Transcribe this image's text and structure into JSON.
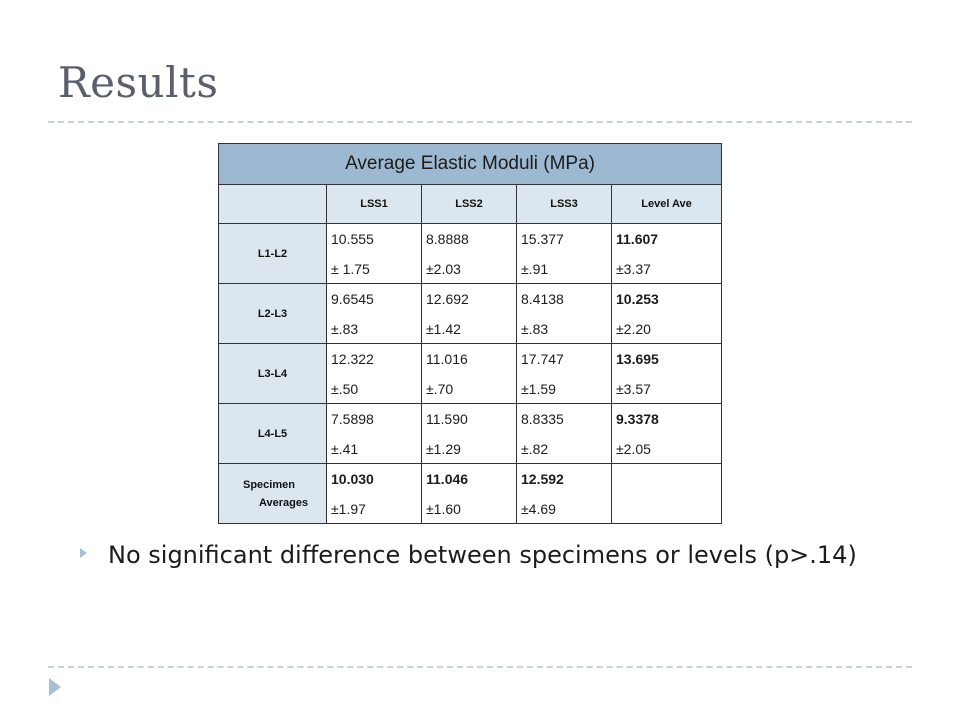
{
  "slide": {
    "title": "Results"
  },
  "table": {
    "title": "Average Elastic Moduli (MPa)",
    "columns": [
      "LSS1",
      "LSS2",
      "LSS3",
      "Level Ave"
    ],
    "rows": [
      {
        "label": "L1-L2",
        "cells": [
          {
            "value": "10.555",
            "sd": "± 1.75"
          },
          {
            "value": "8.8888",
            "sd": "±2.03"
          },
          {
            "value": "15.377",
            "sd": "±.91"
          },
          {
            "value": "11.607",
            "sd": "±3.37"
          }
        ]
      },
      {
        "label": "L2-L3",
        "cells": [
          {
            "value": "9.6545",
            "sd": "±.83"
          },
          {
            "value": "12.692",
            "sd": "±1.42"
          },
          {
            "value": "8.4138",
            "sd": "±.83"
          },
          {
            "value": "10.253",
            "sd": "±2.20"
          }
        ]
      },
      {
        "label": "L3-L4",
        "cells": [
          {
            "value": "12.322",
            "sd": "±.50"
          },
          {
            "value": "11.016",
            "sd": "±.70"
          },
          {
            "value": "17.747",
            "sd": "±1.59"
          },
          {
            "value": "13.695",
            "sd": "±3.57"
          }
        ]
      },
      {
        "label": "L4-L5",
        "cells": [
          {
            "value": "7.5898",
            "sd": "±.41"
          },
          {
            "value": "11.590",
            "sd": "±1.29"
          },
          {
            "value": "8.8335",
            "sd": "±.82"
          },
          {
            "value": "9.3378",
            "sd": "±2.05"
          }
        ]
      }
    ],
    "specimen": {
      "label_line1": "Specimen",
      "label_line2": "Averages",
      "cells": [
        {
          "value": "10.030",
          "sd": "±1.97"
        },
        {
          "value": "11.046",
          "sd": "±1.60"
        },
        {
          "value": "12.592",
          "sd": "±4.69"
        }
      ]
    }
  },
  "bullets": [
    {
      "text": "No significant difference between specimens or levels (p>.14)"
    }
  ]
}
